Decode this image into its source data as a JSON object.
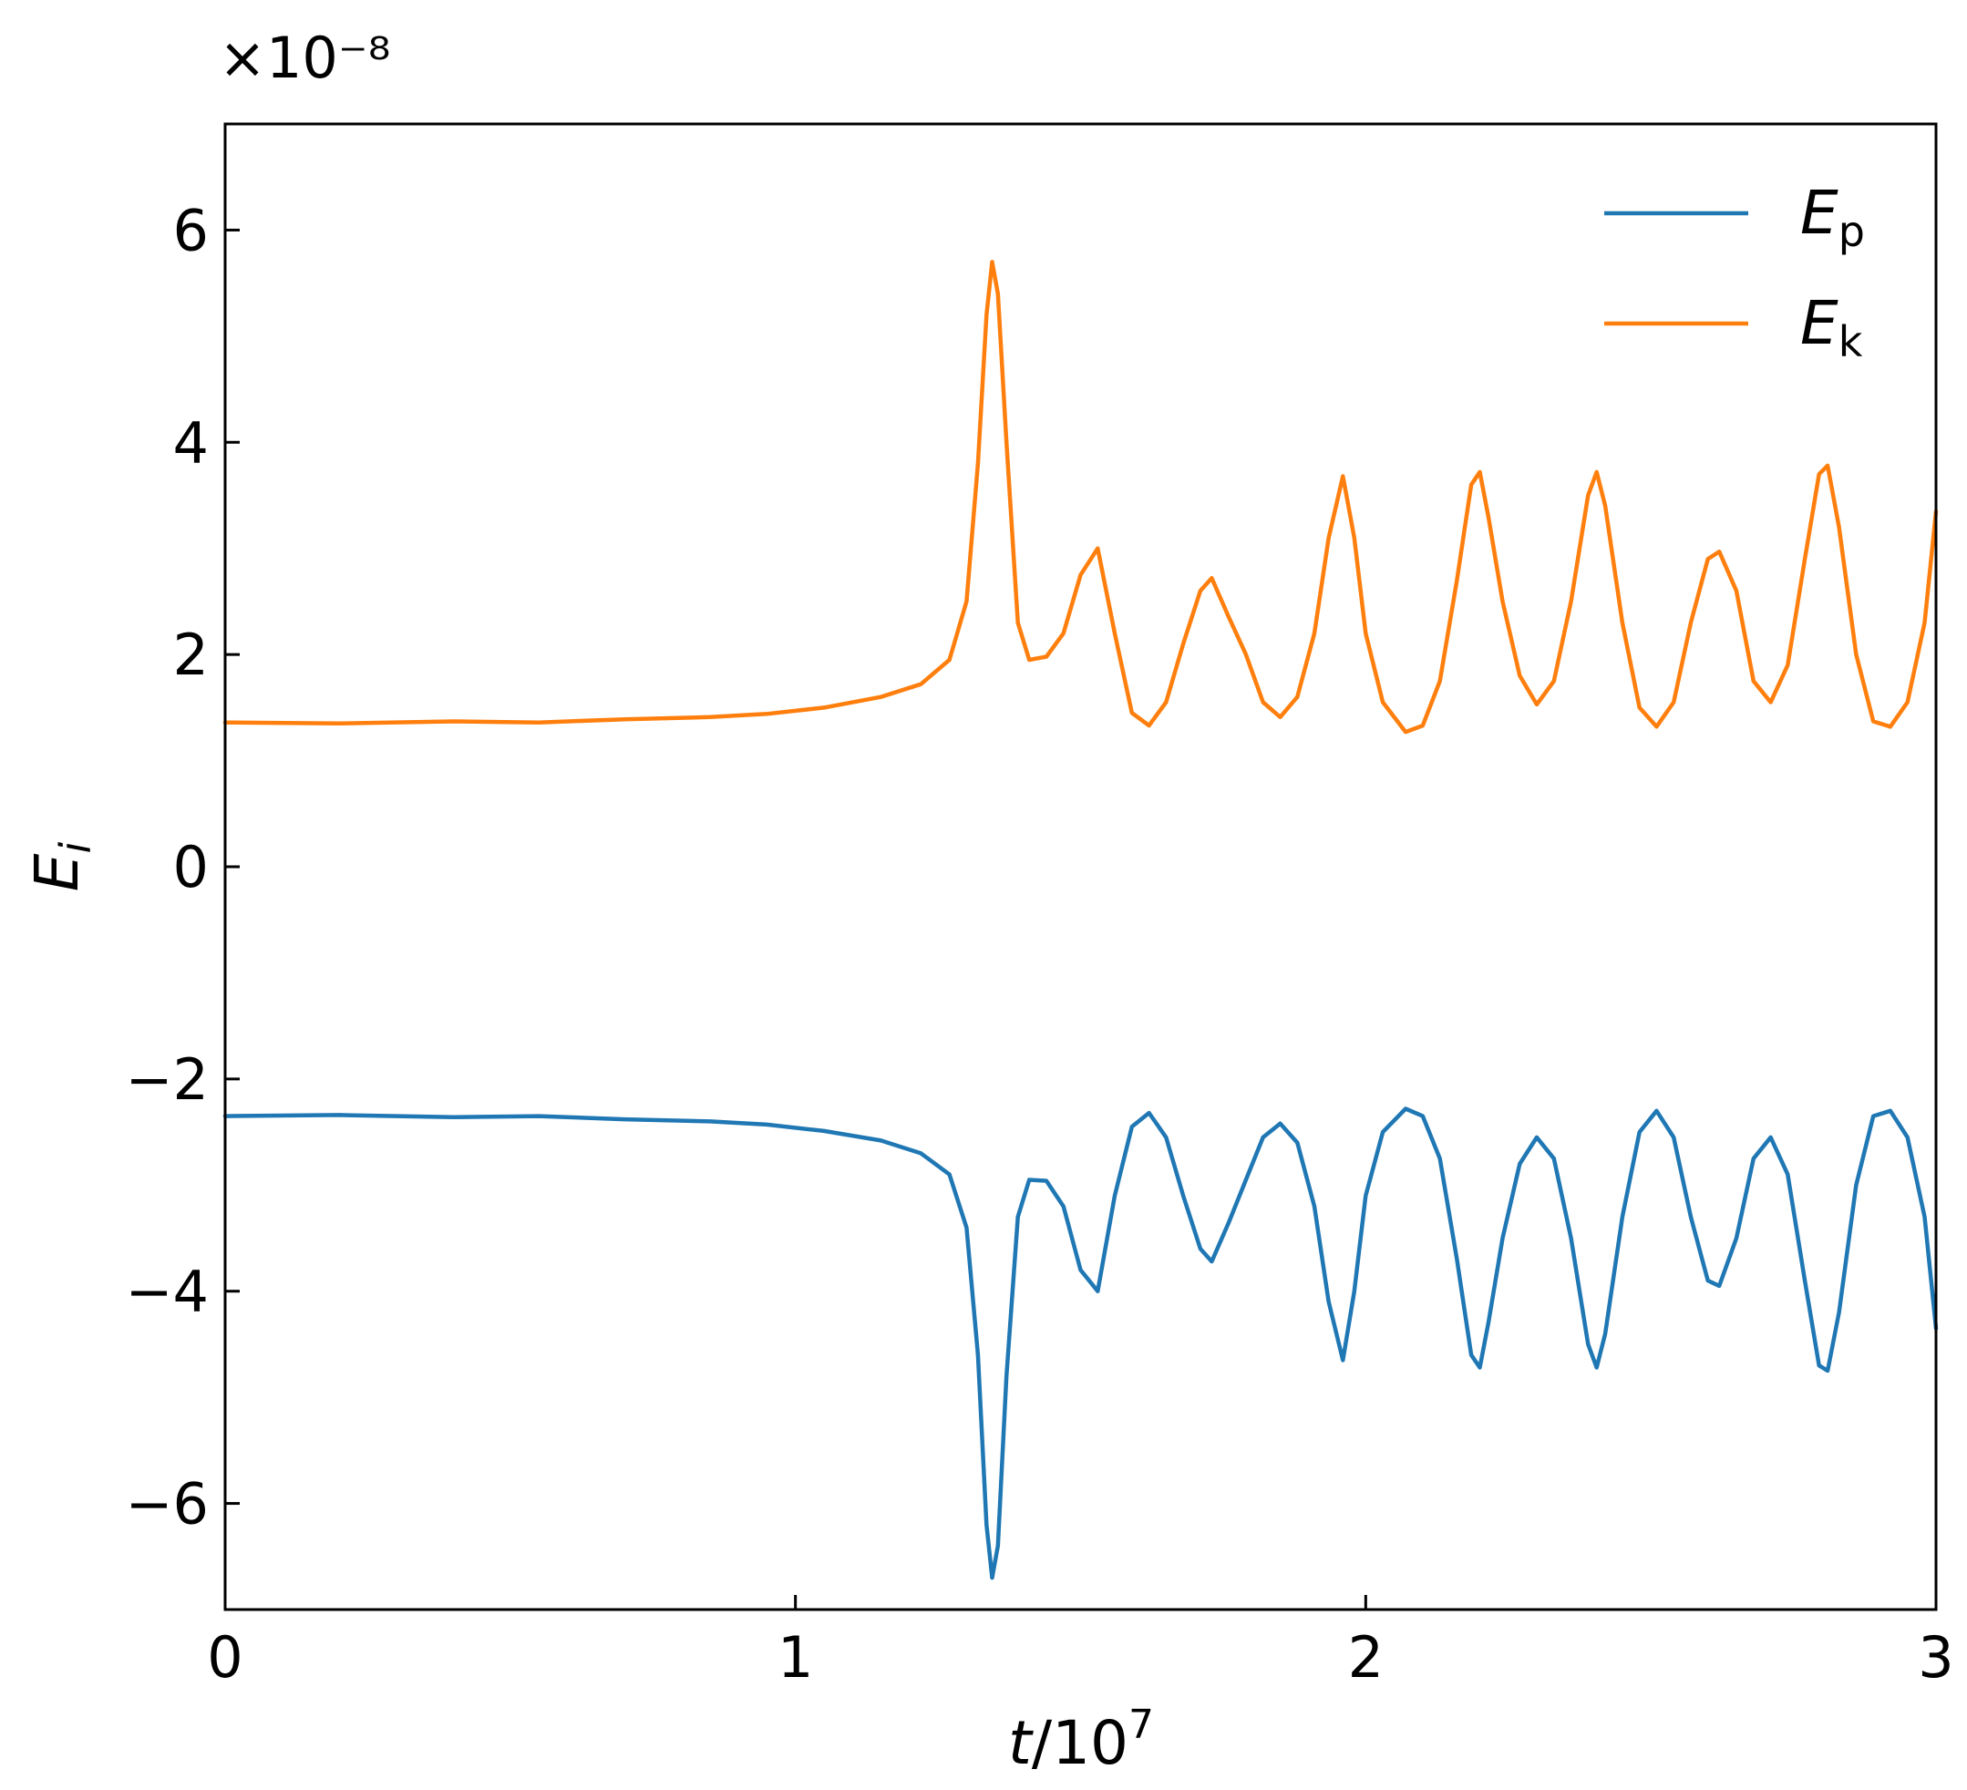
{
  "chart_data": {
    "type": "line",
    "multiplier_label": "×10⁻⁸",
    "xlabel": {
      "main": "t",
      "rest": "/10",
      "sup": "7"
    },
    "ylabel": {
      "main": "E",
      "sub": "i"
    },
    "xlim": [
      0,
      3
    ],
    "ylim": [
      -7,
      7
    ],
    "xticks": [
      0,
      1,
      2,
      3
    ],
    "xtick_labels": [
      "0",
      "1",
      "2",
      "3"
    ],
    "yticks": [
      -6,
      -4,
      -2,
      0,
      2,
      4,
      6
    ],
    "ytick_labels": [
      "−6",
      "−4",
      "−2",
      "0",
      "2",
      "4",
      "6"
    ],
    "grid": false,
    "legend_position": "top-right",
    "series": [
      {
        "name": "E_p",
        "legend": {
          "main": "E",
          "sub": "p"
        },
        "color": "#1f77b4",
        "points": [
          [
            0,
            -2.35
          ],
          [
            0.2,
            -2.34
          ],
          [
            0.4,
            -2.36
          ],
          [
            0.55,
            -2.35
          ],
          [
            0.7,
            -2.38
          ],
          [
            0.85,
            -2.4
          ],
          [
            0.95,
            -2.43
          ],
          [
            1.05,
            -2.49
          ],
          [
            1.15,
            -2.58
          ],
          [
            1.22,
            -2.7
          ],
          [
            1.27,
            -2.9
          ],
          [
            1.3,
            -3.4
          ],
          [
            1.32,
            -4.6
          ],
          [
            1.335,
            -6.2
          ],
          [
            1.345,
            -6.7
          ],
          [
            1.355,
            -6.4
          ],
          [
            1.37,
            -4.8
          ],
          [
            1.39,
            -3.3
          ],
          [
            1.41,
            -2.95
          ],
          [
            1.44,
            -2.96
          ],
          [
            1.47,
            -3.2
          ],
          [
            1.5,
            -3.8
          ],
          [
            1.53,
            -4.0
          ],
          [
            1.56,
            -3.1
          ],
          [
            1.59,
            -2.45
          ],
          [
            1.62,
            -2.32
          ],
          [
            1.65,
            -2.55
          ],
          [
            1.68,
            -3.1
          ],
          [
            1.71,
            -3.6
          ],
          [
            1.73,
            -3.72
          ],
          [
            1.76,
            -3.35
          ],
          [
            1.79,
            -2.95
          ],
          [
            1.82,
            -2.55
          ],
          [
            1.85,
            -2.42
          ],
          [
            1.88,
            -2.6
          ],
          [
            1.91,
            -3.2
          ],
          [
            1.935,
            -4.1
          ],
          [
            1.96,
            -4.65
          ],
          [
            1.98,
            -4.0
          ],
          [
            2.0,
            -3.1
          ],
          [
            2.03,
            -2.5
          ],
          [
            2.07,
            -2.28
          ],
          [
            2.1,
            -2.35
          ],
          [
            2.13,
            -2.75
          ],
          [
            2.16,
            -3.7
          ],
          [
            2.185,
            -4.6
          ],
          [
            2.2,
            -4.72
          ],
          [
            2.215,
            -4.3
          ],
          [
            2.24,
            -3.5
          ],
          [
            2.27,
            -2.8
          ],
          [
            2.3,
            -2.55
          ],
          [
            2.33,
            -2.75
          ],
          [
            2.36,
            -3.5
          ],
          [
            2.39,
            -4.5
          ],
          [
            2.405,
            -4.72
          ],
          [
            2.42,
            -4.4
          ],
          [
            2.45,
            -3.3
          ],
          [
            2.48,
            -2.5
          ],
          [
            2.51,
            -2.3
          ],
          [
            2.54,
            -2.55
          ],
          [
            2.57,
            -3.3
          ],
          [
            2.6,
            -3.9
          ],
          [
            2.62,
            -3.95
          ],
          [
            2.65,
            -3.5
          ],
          [
            2.68,
            -2.75
          ],
          [
            2.71,
            -2.55
          ],
          [
            2.74,
            -2.9
          ],
          [
            2.77,
            -3.9
          ],
          [
            2.795,
            -4.7
          ],
          [
            2.81,
            -4.75
          ],
          [
            2.83,
            -4.2
          ],
          [
            2.86,
            -3.0
          ],
          [
            2.89,
            -2.35
          ],
          [
            2.92,
            -2.3
          ],
          [
            2.95,
            -2.55
          ],
          [
            2.98,
            -3.3
          ],
          [
            3.0,
            -4.35
          ]
        ]
      },
      {
        "name": "E_k",
        "legend": {
          "main": "E",
          "sub": "k"
        },
        "color": "#ff7f0e",
        "points": [
          [
            0,
            1.36
          ],
          [
            0.2,
            1.35
          ],
          [
            0.4,
            1.37
          ],
          [
            0.55,
            1.36
          ],
          [
            0.7,
            1.39
          ],
          [
            0.85,
            1.41
          ],
          [
            0.95,
            1.44
          ],
          [
            1.05,
            1.5
          ],
          [
            1.15,
            1.6
          ],
          [
            1.22,
            1.72
          ],
          [
            1.27,
            1.95
          ],
          [
            1.3,
            2.5
          ],
          [
            1.32,
            3.8
          ],
          [
            1.335,
            5.2
          ],
          [
            1.345,
            5.7
          ],
          [
            1.355,
            5.4
          ],
          [
            1.37,
            4.0
          ],
          [
            1.39,
            2.3
          ],
          [
            1.41,
            1.95
          ],
          [
            1.44,
            1.98
          ],
          [
            1.47,
            2.2
          ],
          [
            1.5,
            2.75
          ],
          [
            1.53,
            3.0
          ],
          [
            1.56,
            2.2
          ],
          [
            1.59,
            1.45
          ],
          [
            1.62,
            1.33
          ],
          [
            1.65,
            1.55
          ],
          [
            1.68,
            2.1
          ],
          [
            1.71,
            2.6
          ],
          [
            1.73,
            2.72
          ],
          [
            1.76,
            2.35
          ],
          [
            1.79,
            2.0
          ],
          [
            1.82,
            1.55
          ],
          [
            1.85,
            1.41
          ],
          [
            1.88,
            1.6
          ],
          [
            1.91,
            2.2
          ],
          [
            1.935,
            3.1
          ],
          [
            1.96,
            3.68
          ],
          [
            1.98,
            3.1
          ],
          [
            2.0,
            2.2
          ],
          [
            2.03,
            1.55
          ],
          [
            2.07,
            1.27
          ],
          [
            2.1,
            1.33
          ],
          [
            2.13,
            1.75
          ],
          [
            2.16,
            2.7
          ],
          [
            2.185,
            3.6
          ],
          [
            2.2,
            3.72
          ],
          [
            2.215,
            3.3
          ],
          [
            2.24,
            2.5
          ],
          [
            2.27,
            1.8
          ],
          [
            2.3,
            1.53
          ],
          [
            2.33,
            1.75
          ],
          [
            2.36,
            2.5
          ],
          [
            2.39,
            3.5
          ],
          [
            2.405,
            3.72
          ],
          [
            2.42,
            3.4
          ],
          [
            2.45,
            2.3
          ],
          [
            2.48,
            1.5
          ],
          [
            2.51,
            1.32
          ],
          [
            2.54,
            1.55
          ],
          [
            2.57,
            2.3
          ],
          [
            2.6,
            2.9
          ],
          [
            2.62,
            2.97
          ],
          [
            2.65,
            2.6
          ],
          [
            2.68,
            1.75
          ],
          [
            2.71,
            1.55
          ],
          [
            2.74,
            1.9
          ],
          [
            2.77,
            2.9
          ],
          [
            2.795,
            3.7
          ],
          [
            2.81,
            3.78
          ],
          [
            2.83,
            3.2
          ],
          [
            2.86,
            2.0
          ],
          [
            2.89,
            1.37
          ],
          [
            2.92,
            1.32
          ],
          [
            2.95,
            1.55
          ],
          [
            2.98,
            2.3
          ],
          [
            3.0,
            3.35
          ]
        ]
      }
    ]
  }
}
